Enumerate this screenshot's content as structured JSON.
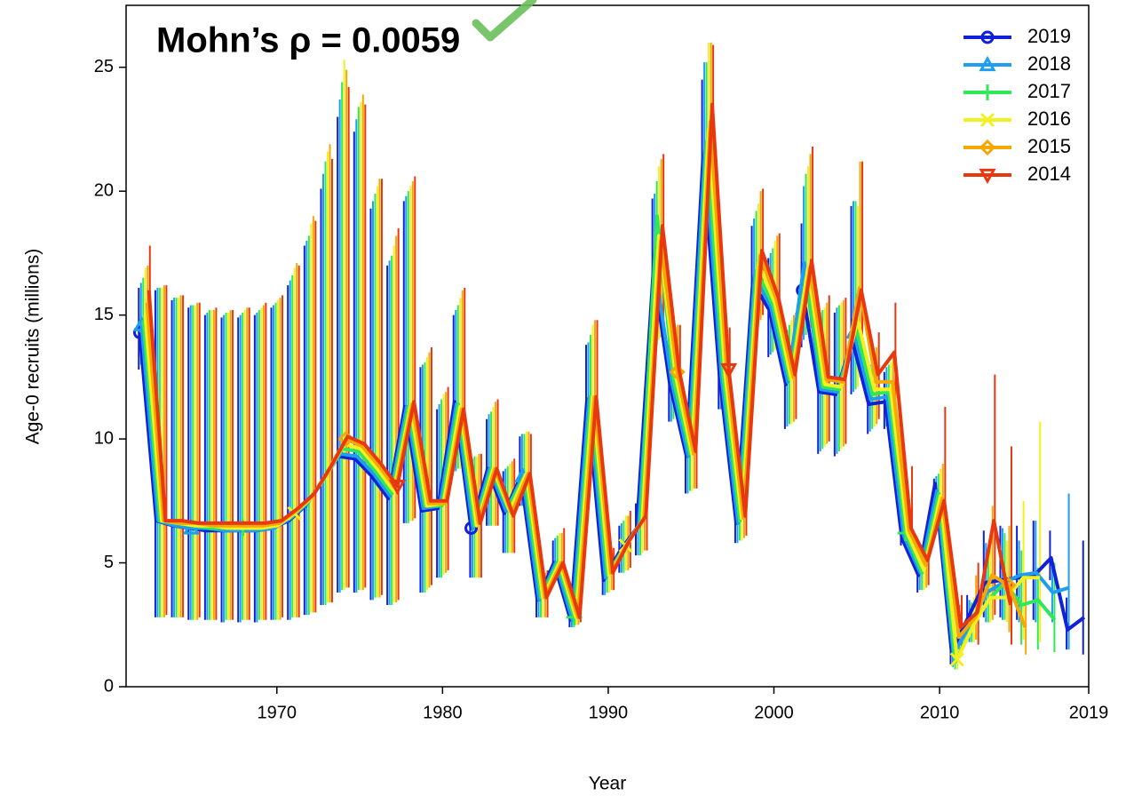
{
  "chart_data": {
    "type": "line",
    "annotation": "Mohn’s ρ  = 0.0059",
    "x_label": "Year",
    "y_label": "Age-0 recruits (millions)",
    "x": [
      1962,
      1963,
      1964,
      1965,
      1966,
      1967,
      1968,
      1969,
      1970,
      1971,
      1972,
      1973,
      1974,
      1975,
      1976,
      1977,
      1978,
      1979,
      1980,
      1981,
      1982,
      1983,
      1984,
      1985,
      1986,
      1987,
      1988,
      1989,
      1990,
      1991,
      1992,
      1993,
      1994,
      1995,
      1996,
      1997,
      1998,
      1999,
      2000,
      2001,
      2002,
      2003,
      2004,
      2005,
      2006,
      2007,
      2008,
      2009,
      2010,
      2011,
      2012,
      2013,
      2014,
      2015,
      2016,
      2017,
      2018,
      2019
    ],
    "xlim": [
      1960.9,
      2019
    ],
    "xticks": [
      1970,
      1980,
      1990,
      2000,
      2010,
      2019
    ],
    "ylim": [
      0,
      27.5
    ],
    "yticks": [
      0,
      5,
      10,
      15,
      20,
      25
    ],
    "legend_position": "top-right",
    "series": [
      {
        "name": "2019",
        "color": "#1022d8",
        "marker": "circle",
        "values": [
          14.3,
          6.7,
          6.5,
          6.4,
          6.3,
          6.3,
          6.3,
          6.3,
          6.4,
          6.7,
          7.3,
          8.3,
          9.3,
          9.2,
          8.5,
          7.6,
          11.3,
          7.1,
          7.2,
          11.5,
          6.4,
          8.8,
          7.0,
          8.5,
          3.5,
          5.0,
          2.7,
          11.6,
          4.3,
          5.5,
          6.4,
          16.8,
          12.2,
          9.3,
          21.3,
          12.5,
          6.6,
          16.3,
          15.2,
          12.2,
          16.0,
          11.9,
          11.8,
          14.0,
          11.4,
          11.5,
          6.0,
          4.5,
          8.2,
          1.4,
          2.8,
          4.2,
          4.3,
          4.4,
          4.5,
          5.2,
          2.3,
          2.8
        ],
        "lower": [
          12.8,
          2.8,
          2.8,
          2.7,
          2.7,
          2.6,
          2.6,
          2.6,
          2.7,
          2.7,
          2.9,
          3.3,
          3.8,
          3.8,
          3.5,
          3.3,
          6.6,
          3.8,
          4.4,
          8.7,
          4.4,
          6.5,
          5.4,
          7.3,
          2.8,
          4.3,
          2.4,
          8.7,
          3.7,
          4.6,
          5.3,
          13.7,
          10.7,
          7.8,
          18.6,
          11.2,
          5.8,
          14.0,
          13.3,
          10.4,
          13.7,
          9.4,
          9.3,
          11.8,
          10.2,
          10.4,
          5.7,
          3.8,
          7.2,
          0.9,
          1.9,
          2.8,
          2.8,
          2.7,
          2.7,
          4.3,
          1.5,
          1.3
        ],
        "upper": [
          16.1,
          16.0,
          15.6,
          15.3,
          15.0,
          14.9,
          14.9,
          15.0,
          15.3,
          16.2,
          17.8,
          20.1,
          23.0,
          22.4,
          19.3,
          17.0,
          19.6,
          12.9,
          11.2,
          15.0,
          9.1,
          10.8,
          8.7,
          10.1,
          4.3,
          5.9,
          3.4,
          13.8,
          5.2,
          6.5,
          7.4,
          19.7,
          14.0,
          10.8,
          24.5,
          14.0,
          7.6,
          18.6,
          17.3,
          14.2,
          18.7,
          14.9,
          15.1,
          19.4,
          12.8,
          12.7,
          6.6,
          5.4,
          8.4,
          1.9,
          3.7,
          6.3,
          6.5,
          6.5,
          6.7,
          6.3,
          3.6,
          5.9
        ]
      },
      {
        "name": "2018",
        "color": "#1e9ef0",
        "marker": "triangle",
        "values": [
          14.6,
          6.7,
          6.5,
          6.4,
          6.4,
          6.3,
          6.3,
          6.3,
          6.4,
          6.8,
          7.4,
          8.4,
          9.4,
          9.3,
          8.6,
          7.7,
          11.3,
          7.2,
          7.3,
          11.4,
          6.4,
          8.8,
          7.1,
          8.5,
          3.5,
          5.0,
          2.7,
          11.6,
          4.4,
          5.5,
          6.5,
          16.9,
          12.3,
          9.3,
          21.6,
          12.5,
          6.6,
          16.6,
          15.3,
          12.3,
          17.1,
          12.0,
          11.9,
          14.3,
          11.6,
          11.7,
          6.1,
          4.6,
          7.9,
          1.3,
          2.5,
          3.8,
          4.2,
          4.5,
          4.6,
          3.8,
          4.0,
          null
        ],
        "lower": [
          13.0,
          2.8,
          2.8,
          2.7,
          2.7,
          2.6,
          2.6,
          2.6,
          2.7,
          2.7,
          2.9,
          3.3,
          3.8,
          3.8,
          3.5,
          3.3,
          6.6,
          3.8,
          4.4,
          8.7,
          4.4,
          6.5,
          5.4,
          7.3,
          2.8,
          4.3,
          2.4,
          8.7,
          3.7,
          4.6,
          5.3,
          13.7,
          10.7,
          7.8,
          18.8,
          11.2,
          5.8,
          14.2,
          13.4,
          10.5,
          14.0,
          9.5,
          9.4,
          11.9,
          10.3,
          10.5,
          5.8,
          3.9,
          6.8,
          0.8,
          1.8,
          2.6,
          2.7,
          2.6,
          2.6,
          2.6,
          1.5,
          null
        ],
        "upper": [
          16.3,
          16.1,
          15.7,
          15.4,
          15.1,
          15.0,
          15.0,
          15.1,
          15.4,
          16.4,
          18.0,
          20.7,
          23.7,
          22.9,
          19.6,
          17.2,
          19.8,
          13.0,
          11.4,
          15.2,
          9.2,
          11.0,
          8.8,
          10.2,
          4.4,
          6.0,
          3.5,
          13.9,
          5.3,
          6.6,
          7.6,
          19.9,
          14.2,
          10.9,
          25.2,
          14.1,
          7.7,
          18.9,
          17.5,
          14.4,
          20.2,
          15.1,
          15.3,
          19.6,
          13.0,
          12.9,
          6.8,
          5.5,
          8.5,
          1.9,
          3.5,
          5.8,
          6.4,
          5.9,
          6.7,
          5.0,
          7.8,
          null
        ]
      },
      {
        "name": "2017",
        "color": "#2ee858",
        "marker": "plus",
        "values": [
          14.8,
          6.7,
          6.6,
          6.5,
          6.4,
          6.4,
          6.4,
          6.4,
          6.5,
          6.9,
          7.5,
          8.5,
          9.6,
          9.5,
          8.7,
          7.8,
          11.3,
          7.3,
          7.3,
          11.4,
          6.5,
          8.8,
          7.2,
          8.5,
          3.6,
          5.0,
          2.8,
          11.7,
          4.5,
          5.6,
          6.6,
          19.0,
          12.4,
          9.4,
          22.0,
          12.5,
          6.7,
          16.8,
          15.4,
          12.4,
          16.5,
          12.1,
          12.0,
          14.5,
          11.8,
          11.9,
          6.2,
          4.6,
          7.8,
          1.0,
          2.4,
          3.5,
          4.2,
          3.3,
          3.5,
          2.7,
          null,
          null
        ],
        "lower": [
          13.2,
          2.8,
          2.8,
          2.7,
          2.7,
          2.7,
          2.7,
          2.7,
          2.7,
          2.8,
          2.9,
          3.3,
          3.9,
          3.9,
          3.6,
          3.3,
          6.6,
          3.8,
          4.4,
          8.8,
          4.4,
          6.5,
          5.4,
          7.3,
          2.8,
          4.3,
          2.4,
          8.7,
          3.8,
          4.6,
          5.3,
          13.8,
          10.8,
          7.9,
          19.2,
          11.2,
          5.9,
          14.4,
          13.5,
          10.6,
          14.2,
          9.6,
          9.5,
          12.0,
          10.4,
          10.6,
          5.8,
          3.9,
          6.8,
          0.7,
          1.8,
          2.6,
          2.7,
          1.7,
          1.5,
          1.4,
          null,
          null
        ],
        "upper": [
          16.5,
          16.1,
          15.7,
          15.4,
          15.2,
          15.1,
          15.1,
          15.2,
          15.5,
          16.6,
          18.2,
          21.2,
          24.4,
          23.4,
          19.9,
          17.4,
          20.0,
          13.1,
          11.6,
          15.4,
          9.3,
          11.1,
          8.9,
          10.2,
          4.5,
          6.1,
          3.6,
          14.2,
          5.4,
          6.7,
          7.8,
          20.4,
          14.4,
          11.0,
          25.2,
          14.2,
          7.8,
          19.2,
          17.7,
          14.6,
          20.7,
          15.2,
          15.4,
          19.6,
          13.1,
          13.0,
          6.9,
          5.5,
          8.6,
          1.5,
          3.4,
          5.2,
          6.2,
          5.5,
          4.8,
          5.0,
          null,
          null
        ]
      },
      {
        "name": "2016",
        "color": "#f2f020",
        "marker": "cross",
        "values": [
          15.0,
          6.7,
          6.6,
          6.5,
          6.5,
          6.4,
          6.4,
          6.4,
          6.5,
          7.0,
          7.6,
          8.6,
          9.8,
          9.6,
          8.8,
          7.9,
          11.3,
          7.3,
          7.4,
          11.3,
          6.5,
          8.8,
          7.1,
          8.6,
          3.6,
          5.0,
          2.8,
          11.7,
          4.5,
          5.7,
          6.7,
          18.2,
          12.6,
          9.4,
          22.5,
          12.6,
          6.8,
          17.1,
          15.5,
          12.4,
          16.9,
          12.2,
          12.1,
          14.8,
          12.0,
          12.0,
          6.2,
          4.7,
          7.7,
          1.1,
          2.5,
          3.6,
          3.6,
          4.4,
          4.4,
          null,
          null,
          null
        ],
        "lower": [
          13.5,
          2.8,
          2.8,
          2.7,
          2.7,
          2.7,
          2.7,
          2.7,
          2.7,
          2.8,
          3.0,
          3.4,
          3.9,
          3.9,
          3.6,
          3.4,
          6.7,
          3.9,
          4.5,
          8.8,
          4.4,
          6.5,
          5.4,
          7.3,
          2.8,
          4.3,
          2.5,
          8.8,
          3.8,
          4.7,
          5.4,
          14.0,
          10.9,
          7.9,
          19.5,
          11.3,
          5.9,
          14.6,
          13.6,
          10.6,
          14.4,
          9.7,
          9.6,
          12.1,
          10.5,
          10.7,
          5.9,
          3.9,
          6.7,
          0.7,
          1.8,
          2.6,
          2.6,
          1.9,
          1.8,
          null,
          null,
          null
        ],
        "upper": [
          16.9,
          16.1,
          15.7,
          15.4,
          15.2,
          15.1,
          15.2,
          15.3,
          15.6,
          16.9,
          18.7,
          21.6,
          25.3,
          23.6,
          20.2,
          17.8,
          20.2,
          13.3,
          11.8,
          15.7,
          9.3,
          11.3,
          9.0,
          10.3,
          4.6,
          6.2,
          3.8,
          14.6,
          5.5,
          6.9,
          8.0,
          21.0,
          14.5,
          11.1,
          26.0,
          14.3,
          7.9,
          19.5,
          18.0,
          14.8,
          21.0,
          15.3,
          15.5,
          19.4,
          13.3,
          13.1,
          7.0,
          5.6,
          8.8,
          1.6,
          3.6,
          5.6,
          5.9,
          7.5,
          10.7,
          null,
          null,
          null
        ]
      },
      {
        "name": "2015",
        "color": "#f5a800",
        "marker": "diamond",
        "values": [
          15.5,
          6.7,
          6.6,
          6.6,
          6.5,
          6.5,
          6.5,
          6.5,
          6.6,
          7.1,
          7.7,
          8.8,
          10.0,
          9.7,
          8.9,
          8.0,
          11.4,
          7.4,
          7.4,
          11.2,
          6.6,
          8.8,
          7.0,
          8.6,
          3.6,
          5.0,
          2.8,
          11.7,
          4.6,
          5.8,
          6.8,
          18.0,
          12.7,
          9.4,
          22.8,
          12.7,
          6.8,
          17.4,
          15.6,
          12.5,
          16.9,
          12.4,
          12.3,
          16.1,
          12.3,
          12.3,
          6.3,
          4.9,
          7.6,
          2.0,
          2.8,
          4.5,
          4.1,
          2.4,
          null,
          null,
          null,
          null
        ],
        "lower": [
          14.2,
          2.8,
          2.8,
          2.7,
          2.7,
          2.7,
          2.7,
          2.7,
          2.7,
          2.8,
          3.0,
          3.4,
          4.0,
          3.9,
          3.6,
          3.4,
          6.7,
          4.0,
          4.6,
          8.9,
          4.4,
          6.5,
          5.4,
          7.2,
          2.8,
          4.3,
          2.5,
          8.8,
          3.9,
          4.7,
          5.5,
          14.1,
          11.0,
          8.0,
          19.8,
          11.4,
          6.0,
          14.8,
          13.7,
          10.7,
          14.5,
          9.8,
          9.7,
          12.5,
          10.6,
          10.8,
          6.0,
          4.0,
          6.6,
          1.3,
          1.9,
          2.7,
          2.2,
          1.3,
          null,
          null,
          null,
          null
        ],
        "upper": [
          17.0,
          16.2,
          15.8,
          15.5,
          15.2,
          15.2,
          15.3,
          15.4,
          15.7,
          17.1,
          19.0,
          21.9,
          24.9,
          23.9,
          20.5,
          18.2,
          20.4,
          13.5,
          11.9,
          16.0,
          9.4,
          11.5,
          9.1,
          10.3,
          4.6,
          6.2,
          3.9,
          14.8,
          5.6,
          6.9,
          8.1,
          21.3,
          14.6,
          11.1,
          26.0,
          14.4,
          8.0,
          20.0,
          18.2,
          15.0,
          21.5,
          15.5,
          15.6,
          21.2,
          13.7,
          13.3,
          7.2,
          5.7,
          9.0,
          3.3,
          4.5,
          7.3,
          6.5,
          4.4,
          null,
          null,
          null,
          null
        ]
      },
      {
        "name": "2014",
        "color": "#e83810",
        "marker": "triangle-down",
        "values": [
          16.0,
          6.7,
          6.7,
          6.6,
          6.6,
          6.6,
          6.6,
          6.6,
          6.7,
          7.2,
          7.8,
          8.9,
          10.1,
          9.8,
          9.0,
          8.1,
          11.5,
          7.5,
          7.5,
          11.2,
          6.6,
          8.8,
          6.9,
          8.6,
          3.6,
          5.0,
          2.8,
          11.7,
          4.6,
          5.9,
          6.9,
          18.6,
          12.8,
          9.5,
          23.5,
          12.8,
          6.9,
          17.6,
          15.7,
          12.6,
          17.2,
          12.5,
          12.4,
          16.0,
          12.6,
          13.5,
          6.4,
          5.1,
          7.5,
          2.4,
          3.0,
          6.7,
          3.3,
          null,
          null,
          null,
          null,
          null
        ],
        "lower": [
          14.6,
          2.9,
          2.8,
          2.8,
          2.7,
          2.7,
          2.7,
          2.7,
          2.8,
          2.8,
          3.0,
          3.4,
          4.0,
          4.0,
          3.7,
          3.5,
          6.8,
          4.1,
          4.7,
          9.0,
          4.4,
          6.5,
          5.4,
          7.2,
          2.8,
          4.3,
          2.6,
          8.9,
          3.9,
          4.8,
          5.5,
          14.3,
          11.1,
          8.0,
          20.0,
          11.5,
          6.1,
          15.0,
          13.8,
          10.8,
          14.7,
          9.9,
          9.8,
          12.8,
          10.8,
          11.0,
          6.1,
          4.1,
          6.5,
          1.6,
          1.7,
          2.9,
          1.7,
          null,
          null,
          null,
          null,
          null
        ],
        "upper": [
          17.8,
          16.2,
          15.8,
          15.5,
          15.3,
          15.2,
          15.3,
          15.5,
          15.8,
          17.0,
          18.8,
          21.3,
          24.2,
          23.5,
          20.5,
          18.5,
          20.6,
          13.7,
          12.1,
          16.1,
          9.4,
          11.6,
          9.2,
          10.2,
          4.7,
          6.4,
          4.0,
          14.8,
          5.6,
          7.1,
          8.2,
          21.5,
          14.6,
          11.2,
          25.9,
          14.5,
          8.1,
          20.1,
          18.3,
          15.1,
          21.8,
          15.8,
          15.7,
          21.2,
          14.3,
          15.5,
          8.9,
          6.8,
          11.3,
          3.7,
          5.0,
          12.6,
          9.7,
          null,
          null,
          null,
          null,
          null
        ]
      }
    ]
  }
}
